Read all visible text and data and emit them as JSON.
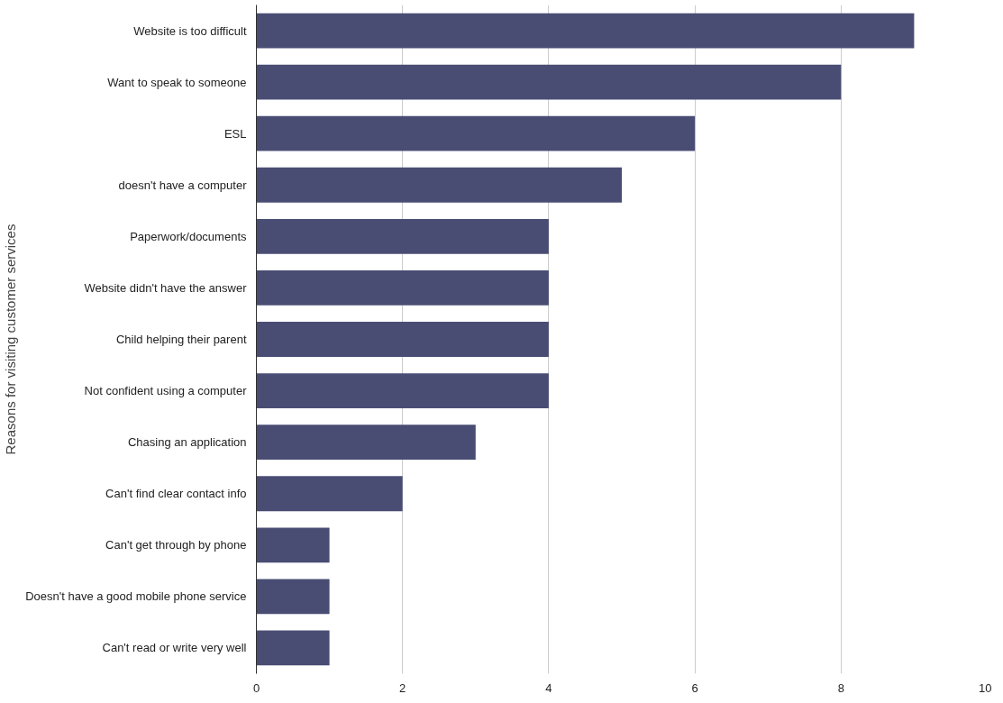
{
  "chart_data": {
    "type": "bar",
    "orientation": "horizontal",
    "ylabel": "Reasons for visiting customer services",
    "categories": [
      "Website is too difficult",
      "Want to speak to someone",
      "ESL",
      "doesn't have a computer",
      "Paperwork/documents",
      "Website didn't have the answer",
      "Child helping their parent",
      "Not confident using a computer",
      "Chasing an application",
      "Can't find clear contact info",
      "Can't get through by phone",
      "Doesn't have a good mobile phone service",
      "Can't read or write very well"
    ],
    "values": [
      9,
      8,
      6,
      5,
      4,
      4,
      4,
      4,
      3,
      2,
      1,
      1,
      1
    ],
    "color": "#494d74",
    "xlim": [
      0,
      10
    ],
    "xticks": [
      0,
      2,
      4,
      6,
      8,
      10
    ],
    "grid": "x"
  }
}
